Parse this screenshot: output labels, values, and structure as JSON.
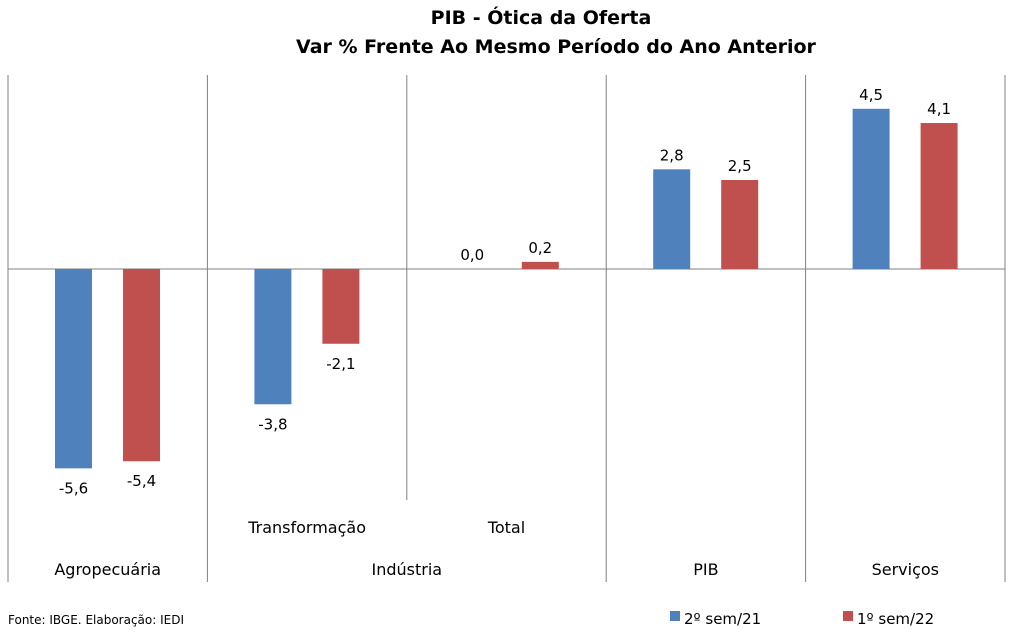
{
  "chart_data": {
    "type": "bar",
    "title": "PIB - Ótica da Oferta",
    "subtitle": "Var % Frente Ao Mesmo Período do Ano Anterior",
    "categories": [
      "Agropecuária",
      "Transformação",
      "Total",
      "PIB",
      "Serviços"
    ],
    "groups": [
      {
        "label": "Agropecuária",
        "subcategories": [
          ""
        ]
      },
      {
        "label": "Indústria",
        "subcategories": [
          "Transformação",
          "Total"
        ]
      },
      {
        "label": "PIB",
        "subcategories": [
          ""
        ]
      },
      {
        "label": "Serviços",
        "subcategories": [
          ""
        ]
      }
    ],
    "series": [
      {
        "name": "2º sem/21",
        "color": "#4f81bd",
        "values": [
          -5.6,
          -3.8,
          0.0,
          2.8,
          4.5
        ],
        "labels": [
          "-5,6",
          "-3,8",
          "0,0",
          "2,8",
          "4,5"
        ]
      },
      {
        "name": "1º sem/22",
        "color": "#c0504d",
        "values": [
          -5.4,
          -2.1,
          0.2,
          2.5,
          4.1
        ],
        "labels": [
          "-5,4",
          "-2,1",
          "0,2",
          "2,5",
          "4,1"
        ]
      }
    ],
    "ylim": [
      -6.7,
      5.5
    ],
    "grid": false,
    "legend_position": "bottom-right",
    "xlabel": "",
    "ylabel": ""
  },
  "footer": {
    "source": "Fonte: IBGE. Elaboração: IEDI"
  }
}
